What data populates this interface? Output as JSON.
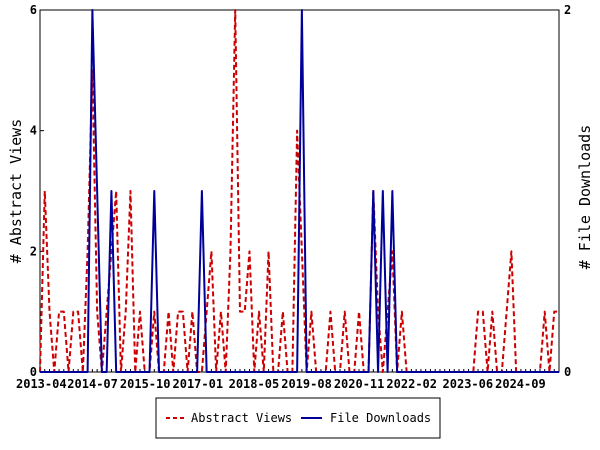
{
  "chart_data": {
    "type": "line",
    "x_start": "2013-04",
    "x_end": "2025-08",
    "x_tick_labels": [
      "2013-04",
      "2014-07",
      "2015-10",
      "2017-01",
      "2018-05",
      "2019-08",
      "2020-11",
      "2022-02",
      "2023-06",
      "2024-09"
    ],
    "y_left_label": "# Abstract Views",
    "y_right_label": "# File Downloads",
    "y_left_ticks": [
      "0",
      "2",
      "4",
      "6"
    ],
    "y_right_ticks": [
      "0",
      "2"
    ],
    "y_left_range": [
      0,
      6
    ],
    "y_right_range": [
      0,
      2
    ],
    "legend_position": "bottom-center",
    "grid": false,
    "series": [
      {
        "name": "Abstract Views",
        "axis": "left",
        "color": "#cc0000",
        "style": "dashed",
        "values": [
          0,
          3,
          1,
          0,
          1,
          1,
          0,
          1,
          1,
          0,
          2,
          5,
          1,
          0,
          1,
          2,
          3,
          0,
          1,
          3,
          0,
          1,
          0,
          0,
          1,
          0,
          0,
          1,
          0,
          1,
          1,
          0,
          1,
          0,
          0,
          1,
          2,
          0,
          1,
          0,
          2,
          6,
          1,
          1,
          2,
          0,
          1,
          0,
          2,
          0,
          0,
          1,
          0,
          0,
          4,
          2,
          0,
          1,
          0,
          0,
          0,
          1,
          0,
          0,
          1,
          0,
          0,
          1,
          0,
          0,
          3,
          1,
          0,
          1,
          2,
          0,
          1,
          0,
          0,
          0,
          0,
          0,
          0,
          0,
          0,
          0,
          0,
          0,
          0,
          0,
          0,
          0,
          1,
          1,
          0,
          1,
          0,
          0,
          1,
          2,
          0,
          0,
          0,
          0,
          0,
          0,
          1,
          0,
          1,
          1
        ]
      },
      {
        "name": "File Downloads",
        "axis": "right",
        "color": "#000099",
        "style": "solid",
        "values": [
          0,
          0,
          0,
          0,
          0,
          0,
          0,
          0,
          0,
          0,
          0,
          2,
          1,
          0,
          0,
          1,
          0,
          0,
          0,
          0,
          0,
          0,
          0,
          0,
          1,
          0,
          0,
          0,
          0,
          0,
          0,
          0,
          0,
          0,
          1,
          0,
          0,
          0,
          0,
          0,
          0,
          0,
          0,
          0,
          0,
          0,
          0,
          0,
          0,
          0,
          0,
          0,
          0,
          0,
          0,
          2,
          0,
          0,
          0,
          0,
          0,
          0,
          0,
          0,
          0,
          0,
          0,
          0,
          0,
          0,
          1,
          0,
          1,
          0,
          1,
          0,
          0,
          0,
          0,
          0,
          0,
          0,
          0,
          0,
          0,
          0,
          0,
          0,
          0,
          0,
          0,
          0,
          0,
          0,
          0,
          0,
          0,
          0,
          0,
          0,
          0,
          0,
          0,
          0,
          0,
          0,
          0,
          0,
          0,
          0
        ]
      }
    ]
  }
}
